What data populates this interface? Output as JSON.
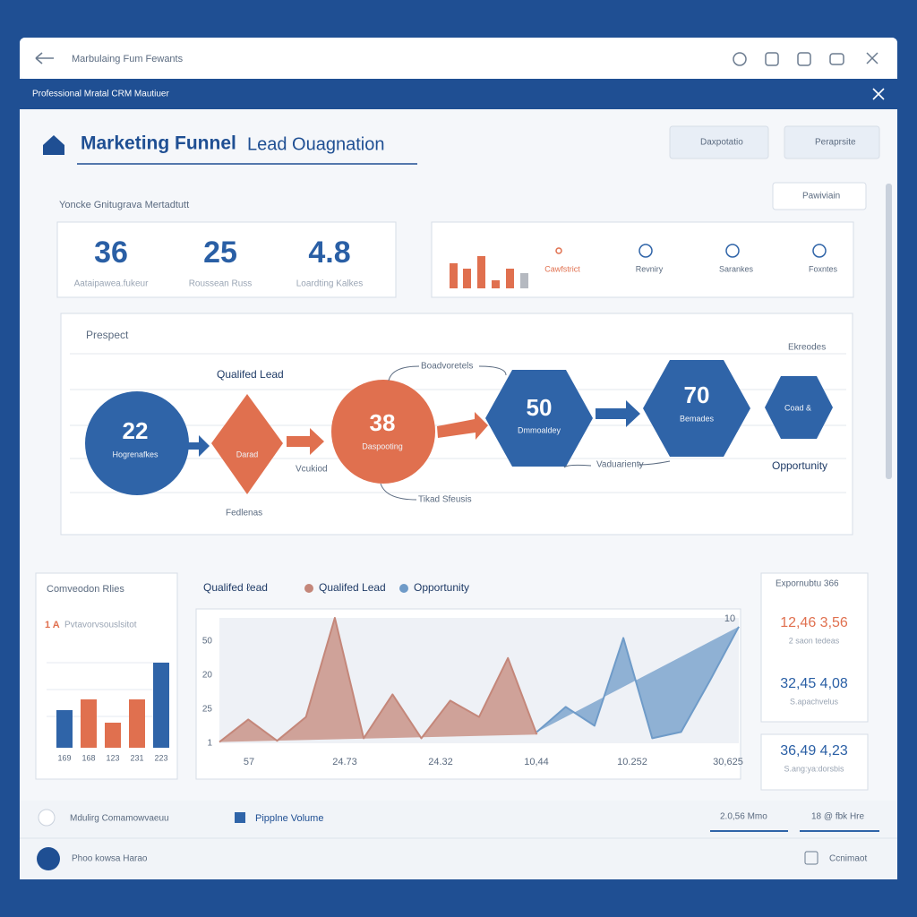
{
  "window": {
    "title": "Marbulaing Fum Fewants",
    "banner": "Professional Mratal CRM Mautiuer"
  },
  "header": {
    "title": "Marketing Funnel",
    "subtitle": "Lead Ouagnation",
    "buttons": [
      "Daxpotatio",
      "Peraprsite"
    ],
    "dropdown": "Pawiviain"
  },
  "section_label": "Yoncke Gnitugrava Mertadtutt",
  "kpis": [
    {
      "value": 36,
      "label": "Aataipawea.fukeur"
    },
    {
      "value": 25,
      "label": "Roussean Russ"
    },
    {
      "value": 4.8,
      "label": "Loardting Kalkes"
    }
  ],
  "icon_strip": [
    "Cawfstrict",
    "Revniry",
    "Sarankes",
    "Foxntes"
  ],
  "funnel": {
    "labels": [
      "Prespect",
      "Qualifed Lead",
      "Boadvoretels",
      "Ekreodes",
      "Opportunity",
      "Fedlenas",
      "Vcukiod",
      "Tikad Sfeusis",
      "Vaduarienty"
    ],
    "nodes": [
      {
        "value": 22,
        "label": "Hogrenafkes"
      },
      {
        "label": "Darad"
      },
      {
        "value": 38,
        "label": "Daspooting"
      },
      {
        "value": 50,
        "label": "Dmmoaldey"
      },
      {
        "value": 70,
        "label": "Bemades"
      },
      {
        "label": "Coad &"
      }
    ]
  },
  "conversion": {
    "type": "bar",
    "title": "Comveodon Rlies",
    "note_num": "1 A",
    "note": "Pvtavorvsouslsitot",
    "categories": [
      "169",
      "168",
      "123",
      "231",
      "223"
    ],
    "values": [
      42,
      54,
      28,
      54,
      95
    ],
    "colors": [
      "#2f64a8",
      "#e0704f",
      "#e0704f",
      "#e0704f",
      "#2f64a8"
    ],
    "ylim": [
      0,
      100
    ]
  },
  "pipeline": {
    "type": "area",
    "title": "Qualifed ℓead",
    "series": [
      {
        "name": "Qualifed Lead",
        "color": "#c4877a",
        "values": [
          1,
          19,
          2,
          21,
          100,
          4,
          39,
          4,
          34,
          21,
          68,
          7,
          null,
          null,
          null,
          null,
          null,
          null,
          null
        ]
      },
      {
        "name": "Opportunity",
        "color": "#6f9bc8",
        "values": [
          null,
          null,
          null,
          null,
          null,
          null,
          null,
          null,
          null,
          null,
          null,
          9,
          29,
          14,
          84,
          4,
          9,
          50,
          93
        ]
      }
    ],
    "ylim": [
      0,
      100
    ],
    "y_labels": [
      "1",
      "25",
      "20",
      "50"
    ],
    "x_labels": [
      "57",
      "24.73",
      "24.32",
      "10,44",
      "10.252",
      "30,625"
    ],
    "annotation": "10"
  },
  "side_stats": {
    "title": "Expornubtu 366",
    "items": [
      {
        "value": "12,46 3,56",
        "label": "2 saon tedeas"
      },
      {
        "value": "32,45 4,08",
        "label": "S.apachvelus"
      },
      {
        "value": "36,49 4,23",
        "label": "S.ang:ya:dorsbis"
      }
    ]
  },
  "footer": {
    "left": "Mdulirg Comamowvaeuu",
    "legend": "Pipplne Volume",
    "stat1": "2.0,56 Mmo",
    "stat2": "18 @ fbk Hre",
    "user": "Phoo kowsa Harao",
    "action": "Ccnimaot"
  }
}
